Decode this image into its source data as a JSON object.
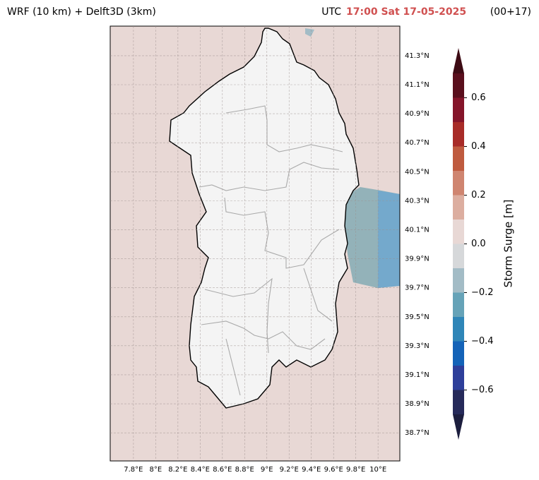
{
  "chart_data": {
    "type": "map",
    "title": "WRF (10 km) + Delft3D (3km)",
    "time_prefix": "UTC",
    "time": "17:00 Sat 17-05-2025",
    "lead": "(00+17)",
    "xlim": [
      7.591,
      10.196
    ],
    "ylim": [
      38.506,
      41.504
    ],
    "xticks": [
      {
        "value": 7.8,
        "label": "7.8°E"
      },
      {
        "value": 8,
        "label": "8°E"
      },
      {
        "value": 8.2,
        "label": "8.2°E"
      },
      {
        "value": 8.4,
        "label": "8.4°E"
      },
      {
        "value": 8.6,
        "label": "8.6°E"
      },
      {
        "value": 8.8,
        "label": "8.8°E"
      },
      {
        "value": 9,
        "label": "9°E"
      },
      {
        "value": 9.2,
        "label": "9.2°E"
      },
      {
        "value": 9.4,
        "label": "9.4°E"
      },
      {
        "value": 9.6,
        "label": "9.6°E"
      },
      {
        "value": 9.8,
        "label": "9.8°E"
      },
      {
        "value": 10,
        "label": "10°E"
      }
    ],
    "yticks": [
      {
        "value": 38.7,
        "label": "38.7°N"
      },
      {
        "value": 38.9,
        "label": "38.9°N"
      },
      {
        "value": 39.1,
        "label": "39.1°N"
      },
      {
        "value": 39.3,
        "label": "39.3°N"
      },
      {
        "value": 39.5,
        "label": "39.5°N"
      },
      {
        "value": 39.7,
        "label": "39.7°N"
      },
      {
        "value": 39.9,
        "label": "39.9°N"
      },
      {
        "value": 40.1,
        "label": "40.1°N"
      },
      {
        "value": 40.3,
        "label": "40.3°N"
      },
      {
        "value": 40.5,
        "label": "40.5°N"
      },
      {
        "value": 40.7,
        "label": "40.7°N"
      },
      {
        "value": 40.9,
        "label": "40.9°N"
      },
      {
        "value": 41.1,
        "label": "41.1°N"
      },
      {
        "value": 41.3,
        "label": "41.3°N"
      }
    ],
    "grid": true,
    "colorbar": {
      "label": "Storm Surge [m]",
      "levels": [
        -0.7,
        -0.6,
        -0.5,
        -0.4,
        -0.3,
        -0.2,
        -0.1,
        0,
        0.1,
        0.2,
        0.3,
        0.4,
        0.5,
        0.6,
        0.7
      ],
      "colors": [
        "#262a5a",
        "#2e3f9a",
        "#1463b8",
        "#2f86b8",
        "#66a3b8",
        "#a3bcc6",
        "#d6d8da",
        "#e8d8d5",
        "#dcaea0",
        "#cf8570",
        "#bf5b3f",
        "#a82c28",
        "#85152a",
        "#5a0f1d"
      ],
      "under_color": "#1c1e3e",
      "over_color": "#3d0b14",
      "ticks": [
        {
          "value": -0.6,
          "label": "−0.6"
        },
        {
          "value": -0.4,
          "label": "−0.4"
        },
        {
          "value": -0.2,
          "label": "−0.2"
        },
        {
          "value": 0,
          "label": "0.0"
        },
        0.2,
        0.4,
        0.6
      ]
    }
  }
}
